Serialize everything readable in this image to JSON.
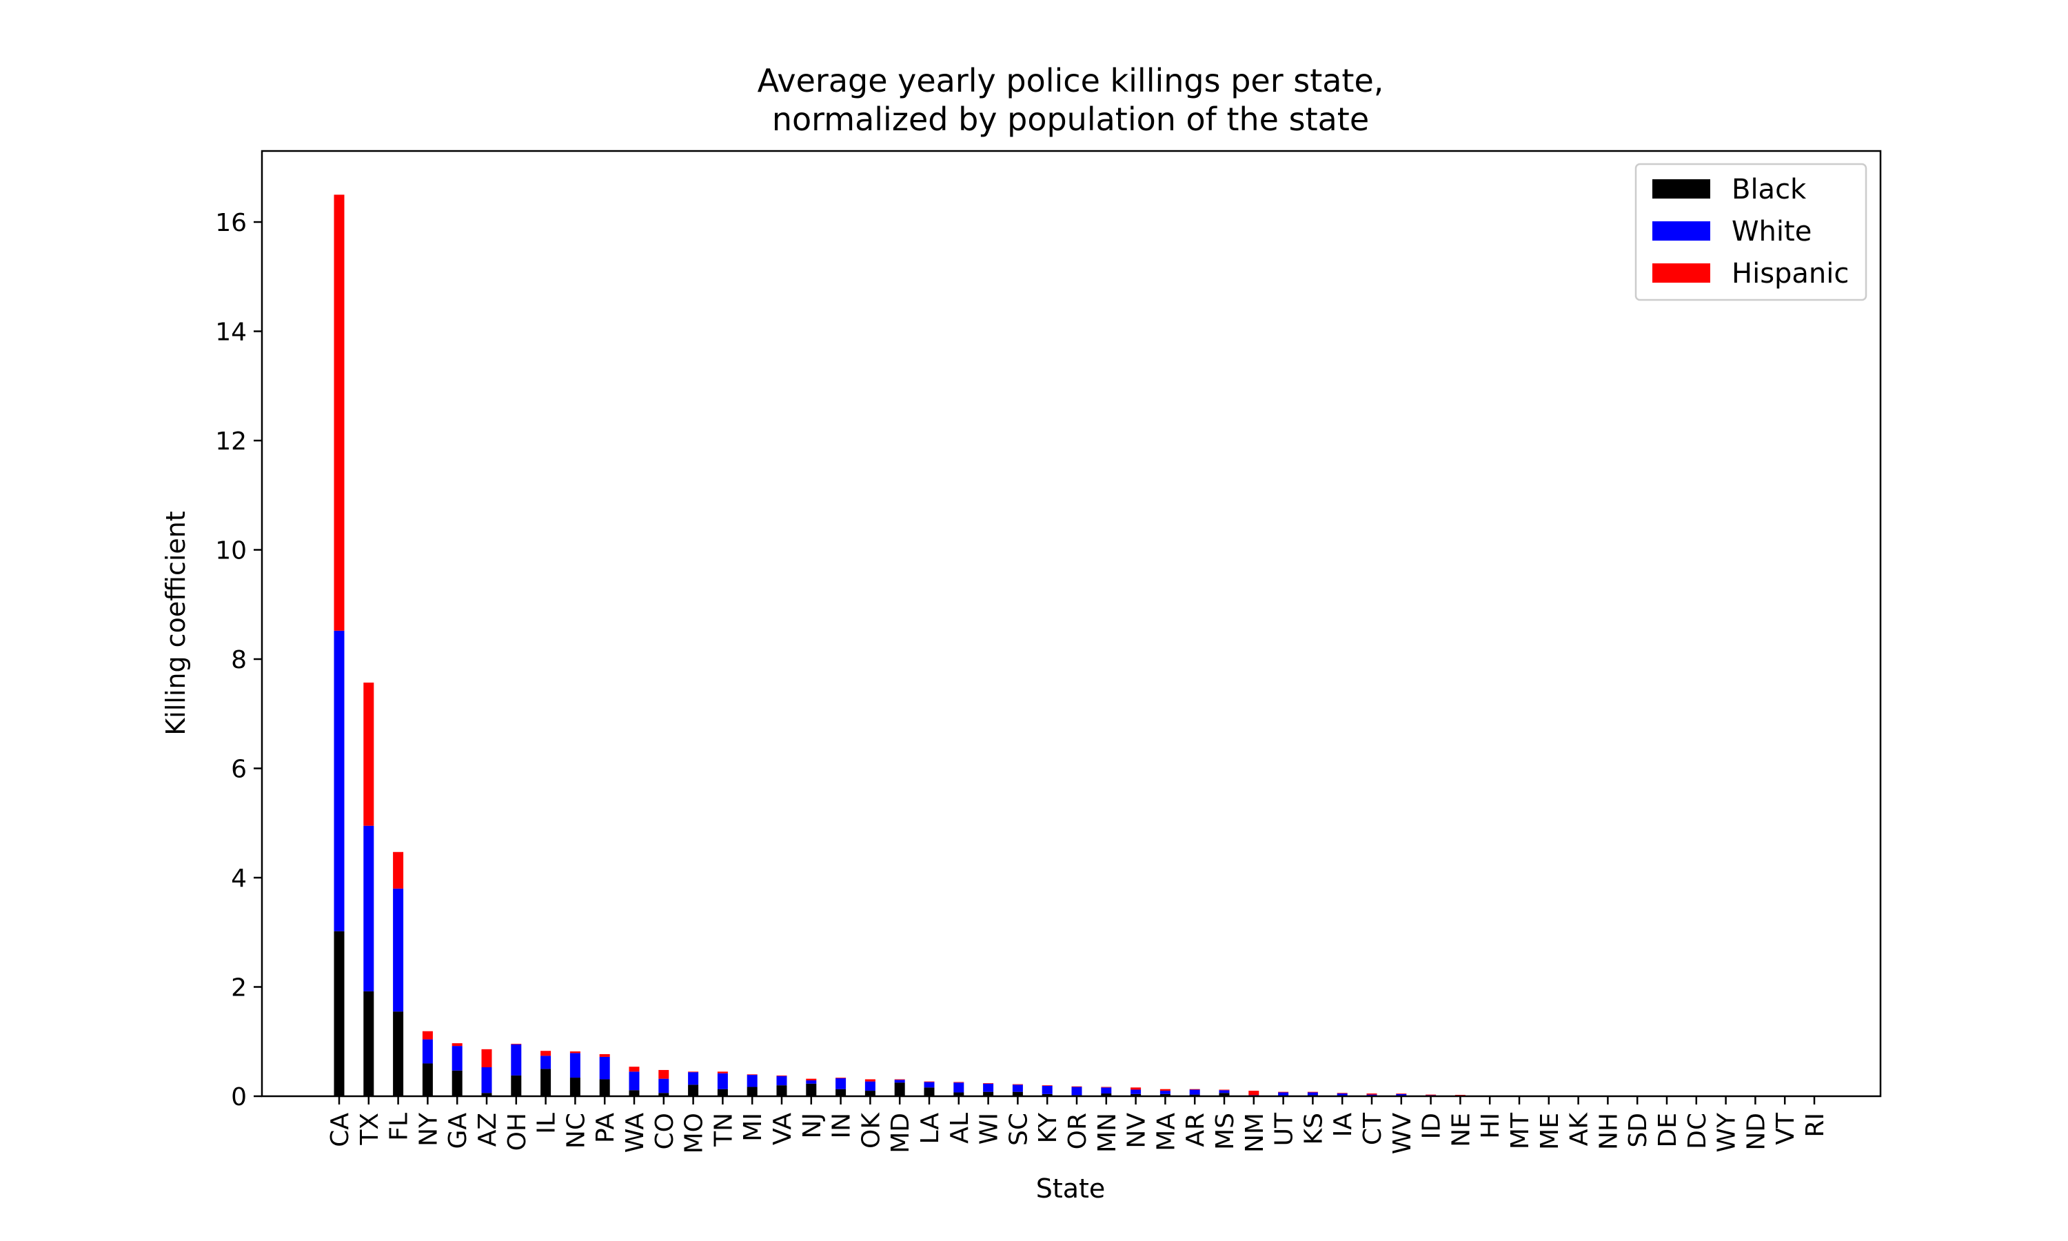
{
  "chart_data": {
    "type": "bar",
    "stacked": true,
    "title": [
      "Average yearly police killings per state,",
      "normalized by population of the state"
    ],
    "xlabel": "State",
    "ylabel": "Killing coefficient",
    "ylim": [
      0,
      17.3
    ],
    "yticks": [
      0,
      2,
      4,
      6,
      8,
      10,
      12,
      14,
      16
    ],
    "ytick_labels": [
      "0",
      "2",
      "4",
      "6",
      "8",
      "10",
      "12",
      "14",
      "16"
    ],
    "grid": false,
    "legend_position": "top-right",
    "categories": [
      "CA",
      "TX",
      "FL",
      "NY",
      "GA",
      "AZ",
      "OH",
      "IL",
      "NC",
      "PA",
      "WA",
      "CO",
      "MO",
      "TN",
      "MI",
      "VA",
      "NJ",
      "IN",
      "OK",
      "MD",
      "LA",
      "AL",
      "WI",
      "SC",
      "KY",
      "OR",
      "MN",
      "NV",
      "MA",
      "AR",
      "MS",
      "NM",
      "UT",
      "KS",
      "IA",
      "CT",
      "WV",
      "ID",
      "NE",
      "HI",
      "MT",
      "ME",
      "AK",
      "NH",
      "SD",
      "DE",
      "DC",
      "WY",
      "ND",
      "VT",
      "RI"
    ],
    "series": [
      {
        "name": "Black",
        "color": "#000000",
        "values": [
          3.02,
          1.92,
          1.55,
          0.6,
          0.47,
          0.06,
          0.38,
          0.5,
          0.34,
          0.31,
          0.11,
          0.06,
          0.21,
          0.13,
          0.17,
          0.2,
          0.23,
          0.13,
          0.1,
          0.25,
          0.16,
          0.07,
          0.08,
          0.08,
          0.04,
          0.02,
          0.05,
          0.04,
          0.04,
          0.03,
          0.06,
          0.01,
          0.01,
          0.02,
          0.01,
          0.01,
          0.01,
          0,
          0.005,
          0,
          0,
          0,
          0,
          0,
          0,
          0,
          0,
          0,
          0,
          0,
          0
        ]
      },
      {
        "name": "White",
        "color": "#0000ff",
        "values": [
          5.5,
          3.03,
          2.25,
          0.44,
          0.45,
          0.47,
          0.57,
          0.24,
          0.45,
          0.41,
          0.34,
          0.26,
          0.23,
          0.29,
          0.22,
          0.17,
          0.06,
          0.2,
          0.17,
          0.05,
          0.1,
          0.18,
          0.15,
          0.13,
          0.15,
          0.15,
          0.11,
          0.08,
          0.06,
          0.09,
          0.05,
          0.01,
          0.06,
          0.05,
          0.04,
          0.02,
          0.03,
          0.02,
          0.01,
          0,
          0,
          0,
          0,
          0,
          0,
          0,
          0,
          0,
          0,
          0,
          0
        ]
      },
      {
        "name": "Hispanic",
        "color": "#ff0000",
        "values": [
          7.98,
          2.62,
          0.67,
          0.15,
          0.05,
          0.33,
          0.01,
          0.09,
          0.03,
          0.05,
          0.09,
          0.16,
          0.01,
          0.03,
          0.01,
          0.01,
          0.03,
          0.01,
          0.04,
          0.01,
          0.01,
          0.01,
          0.01,
          0.01,
          0.01,
          0.01,
          0.01,
          0.04,
          0.03,
          0.01,
          0.01,
          0.08,
          0.01,
          0.01,
          0.01,
          0.02,
          0.01,
          0.01,
          0.01,
          0,
          0,
          0,
          0,
          0,
          0,
          0,
          0,
          0,
          0,
          0,
          0
        ]
      }
    ]
  }
}
